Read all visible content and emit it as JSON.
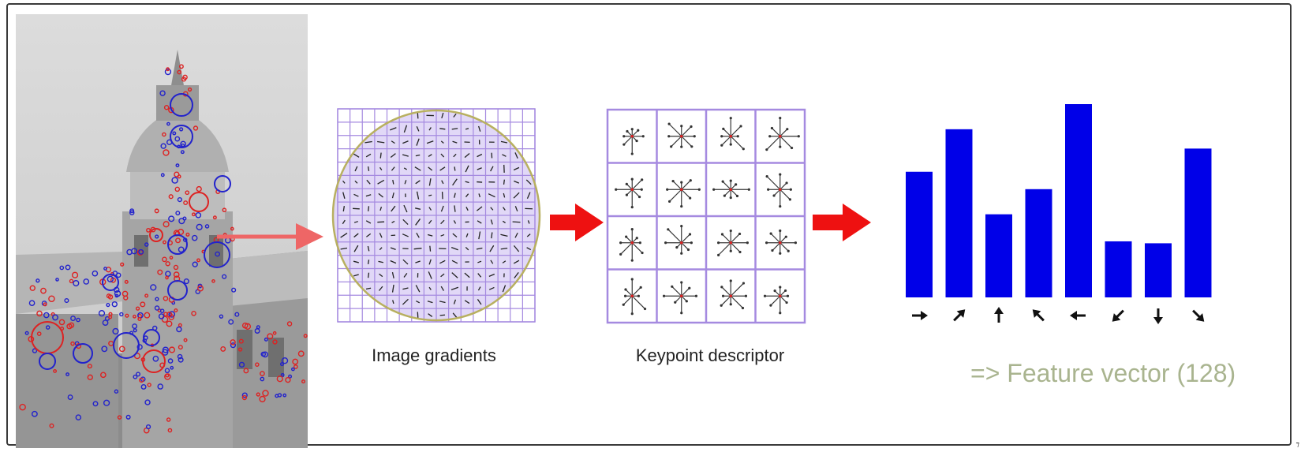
{
  "captions": {
    "image_gradients": "Image gradients",
    "keypoint_descriptor": "Keypoint descriptor",
    "feature_vector": "=> Feature vector (128)"
  },
  "histogram": {
    "bar_values": [
      0.65,
      0.87,
      0.43,
      0.56,
      1.0,
      0.29,
      0.28,
      0.77
    ],
    "bin_directions": [
      "right",
      "up-right",
      "up",
      "up-left",
      "left",
      "down-left",
      "down",
      "down-right"
    ],
    "bar_color": "#0000e8"
  },
  "descriptor_grid": {
    "rows": 4,
    "cols": 4
  },
  "gradient_grid": {
    "rows": 16,
    "cols": 16
  },
  "colors": {
    "arrow_red": "#ee1111",
    "connector": "#ee6666",
    "grid_purple": "#a58ae0",
    "circle_olive": "#b8b060",
    "keypoint_blue": "#2222cc",
    "keypoint_red": "#dd2222"
  }
}
